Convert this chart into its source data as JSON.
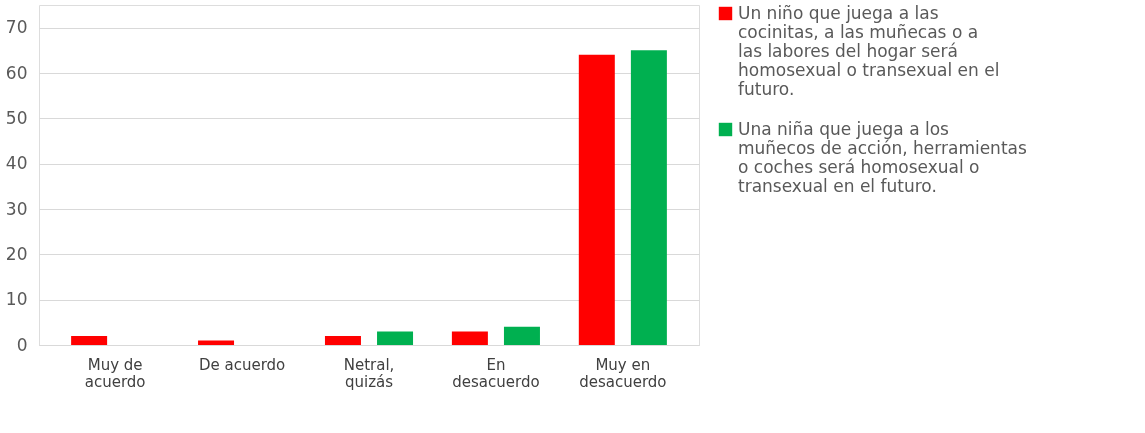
{
  "chart_data": {
    "type": "bar",
    "categories": [
      "Muy de acuerdo",
      "De acuerdo",
      "Netral, quizás",
      "En desacuerdo",
      "Muy en desacuerdo"
    ],
    "series": [
      {
        "name": "Un niño que juega a las cocinitas, a las muñecas o a las labores del hogar será homosexual o transexual en el futuro.",
        "color": "#ff0000",
        "values": [
          2,
          1,
          2,
          3,
          64
        ]
      },
      {
        "name": "Una niña que juega a los muñecos de acción, herramientas o coches será homosexual o transexual en el futuro.",
        "color": "#00b050",
        "values": [
          0,
          0,
          3,
          4,
          65
        ]
      }
    ],
    "ylim": [
      0,
      75
    ],
    "yticks": [
      0,
      10,
      20,
      30,
      40,
      50,
      60,
      70
    ],
    "grid": "y",
    "legend": "right"
  }
}
